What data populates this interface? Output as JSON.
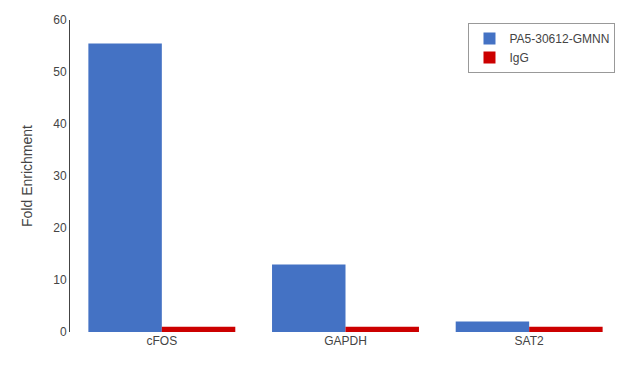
{
  "chart_data": {
    "type": "bar",
    "categories": [
      "cFOS",
      "GAPDH",
      "SAT2"
    ],
    "series": [
      {
        "name": "PA5-30612-GMNN",
        "color": "#4472C4",
        "values": [
          55.5,
          13.0,
          2.0
        ]
      },
      {
        "name": "IgG",
        "color": "#CC0000",
        "values": [
          1.0,
          1.0,
          1.0
        ]
      }
    ],
    "ylabel": "Fold Enrichment",
    "ylim": [
      0,
      60
    ],
    "yticks": [
      0,
      10,
      20,
      30,
      40,
      50,
      60
    ],
    "grid": false,
    "legend": "upper right"
  }
}
